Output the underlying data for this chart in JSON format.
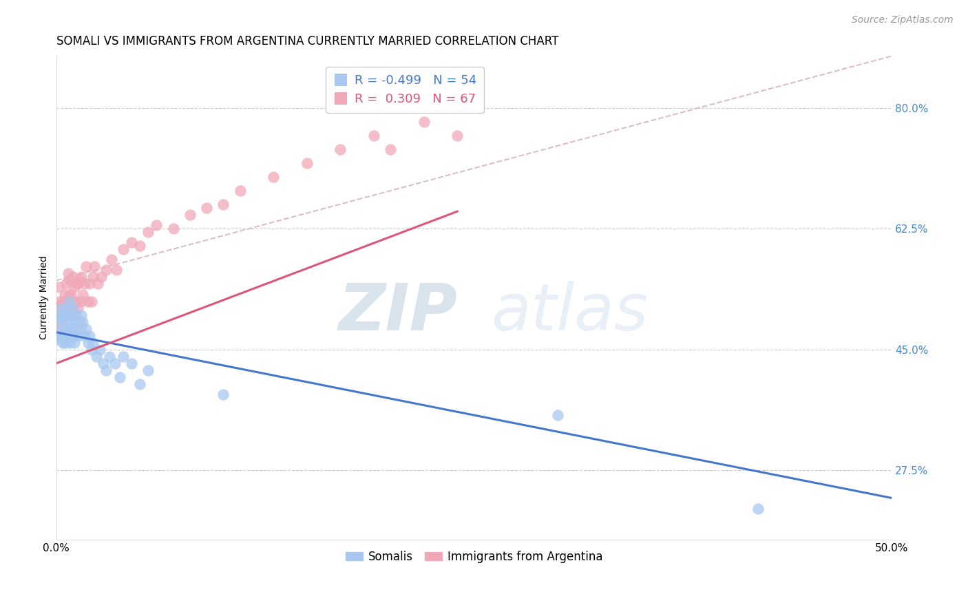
{
  "title": "SOMALI VS IMMIGRANTS FROM ARGENTINA CURRENTLY MARRIED CORRELATION CHART",
  "source": "Source: ZipAtlas.com",
  "ylabel_label": "Currently Married",
  "legend_blue_r": "-0.499",
  "legend_blue_n": "54",
  "legend_pink_r": "0.309",
  "legend_pink_n": "67",
  "legend_blue_label": "Somalis",
  "legend_pink_label": "Immigrants from Argentina",
  "blue_color": "#A8C8F0",
  "pink_color": "#F0A8B8",
  "blue_line_color": "#4477CC",
  "pink_line_color": "#DD5577",
  "diagonal_color": "#DDBBCC",
  "watermark_zip": "ZIP",
  "watermark_atlas": "atlas",
  "title_fontsize": 12,
  "axis_label_fontsize": 10,
  "tick_fontsize": 11,
  "source_fontsize": 10,
  "blue_scatter": {
    "x": [
      0.001,
      0.001,
      0.002,
      0.002,
      0.003,
      0.003,
      0.003,
      0.004,
      0.004,
      0.004,
      0.005,
      0.005,
      0.005,
      0.006,
      0.006,
      0.006,
      0.007,
      0.007,
      0.008,
      0.008,
      0.008,
      0.009,
      0.009,
      0.01,
      0.01,
      0.011,
      0.011,
      0.012,
      0.012,
      0.013,
      0.014,
      0.015,
      0.015,
      0.016,
      0.017,
      0.018,
      0.019,
      0.02,
      0.021,
      0.022,
      0.024,
      0.026,
      0.028,
      0.03,
      0.032,
      0.035,
      0.038,
      0.04,
      0.045,
      0.05,
      0.055,
      0.1,
      0.3,
      0.42
    ],
    "y": [
      0.465,
      0.495,
      0.47,
      0.5,
      0.48,
      0.51,
      0.47,
      0.5,
      0.46,
      0.49,
      0.47,
      0.5,
      0.46,
      0.48,
      0.51,
      0.47,
      0.5,
      0.48,
      0.49,
      0.46,
      0.52,
      0.48,
      0.5,
      0.51,
      0.47,
      0.49,
      0.46,
      0.5,
      0.48,
      0.47,
      0.49,
      0.48,
      0.5,
      0.49,
      0.47,
      0.48,
      0.46,
      0.47,
      0.45,
      0.46,
      0.44,
      0.45,
      0.43,
      0.42,
      0.44,
      0.43,
      0.41,
      0.44,
      0.43,
      0.4,
      0.42,
      0.385,
      0.355,
      0.22
    ]
  },
  "pink_scatter": {
    "x": [
      0.001,
      0.001,
      0.002,
      0.002,
      0.002,
      0.003,
      0.003,
      0.003,
      0.004,
      0.004,
      0.004,
      0.005,
      0.005,
      0.005,
      0.006,
      0.006,
      0.006,
      0.007,
      0.007,
      0.007,
      0.008,
      0.008,
      0.008,
      0.009,
      0.009,
      0.01,
      0.01,
      0.01,
      0.011,
      0.011,
      0.012,
      0.012,
      0.013,
      0.013,
      0.014,
      0.015,
      0.015,
      0.016,
      0.017,
      0.018,
      0.019,
      0.02,
      0.021,
      0.022,
      0.023,
      0.025,
      0.027,
      0.03,
      0.033,
      0.036,
      0.04,
      0.045,
      0.05,
      0.055,
      0.06,
      0.07,
      0.08,
      0.09,
      0.1,
      0.11,
      0.13,
      0.15,
      0.17,
      0.19,
      0.2,
      0.22,
      0.24
    ],
    "y": [
      0.5,
      0.475,
      0.52,
      0.49,
      0.54,
      0.48,
      0.515,
      0.505,
      0.52,
      0.495,
      0.5,
      0.53,
      0.5,
      0.52,
      0.515,
      0.545,
      0.5,
      0.52,
      0.56,
      0.5,
      0.53,
      0.515,
      0.55,
      0.5,
      0.53,
      0.52,
      0.555,
      0.505,
      0.54,
      0.5,
      0.52,
      0.545,
      0.51,
      0.545,
      0.55,
      0.52,
      0.555,
      0.53,
      0.545,
      0.57,
      0.52,
      0.545,
      0.52,
      0.555,
      0.57,
      0.545,
      0.555,
      0.565,
      0.58,
      0.565,
      0.595,
      0.605,
      0.6,
      0.62,
      0.63,
      0.625,
      0.645,
      0.655,
      0.66,
      0.68,
      0.7,
      0.72,
      0.74,
      0.76,
      0.74,
      0.78,
      0.76
    ]
  },
  "blue_line": {
    "x0": 0.0,
    "x1": 0.5,
    "y0": 0.475,
    "y1": 0.235
  },
  "pink_line": {
    "x0": 0.0,
    "x1": 0.24,
    "y0": 0.43,
    "y1": 0.65
  },
  "diagonal_line": {
    "x0": 0.0,
    "x1": 0.5,
    "y0": 0.55,
    "y1": 0.875
  },
  "xlim": [
    0.0,
    0.5
  ],
  "ylim": [
    0.175,
    0.875
  ],
  "yticks": [
    0.275,
    0.45,
    0.625,
    0.8
  ],
  "ytick_labels": [
    "27.5%",
    "45.0%",
    "62.5%",
    "80.0%"
  ],
  "xticks": [
    0.0,
    0.5
  ],
  "xtick_labels": [
    "0.0%",
    "50.0%"
  ]
}
